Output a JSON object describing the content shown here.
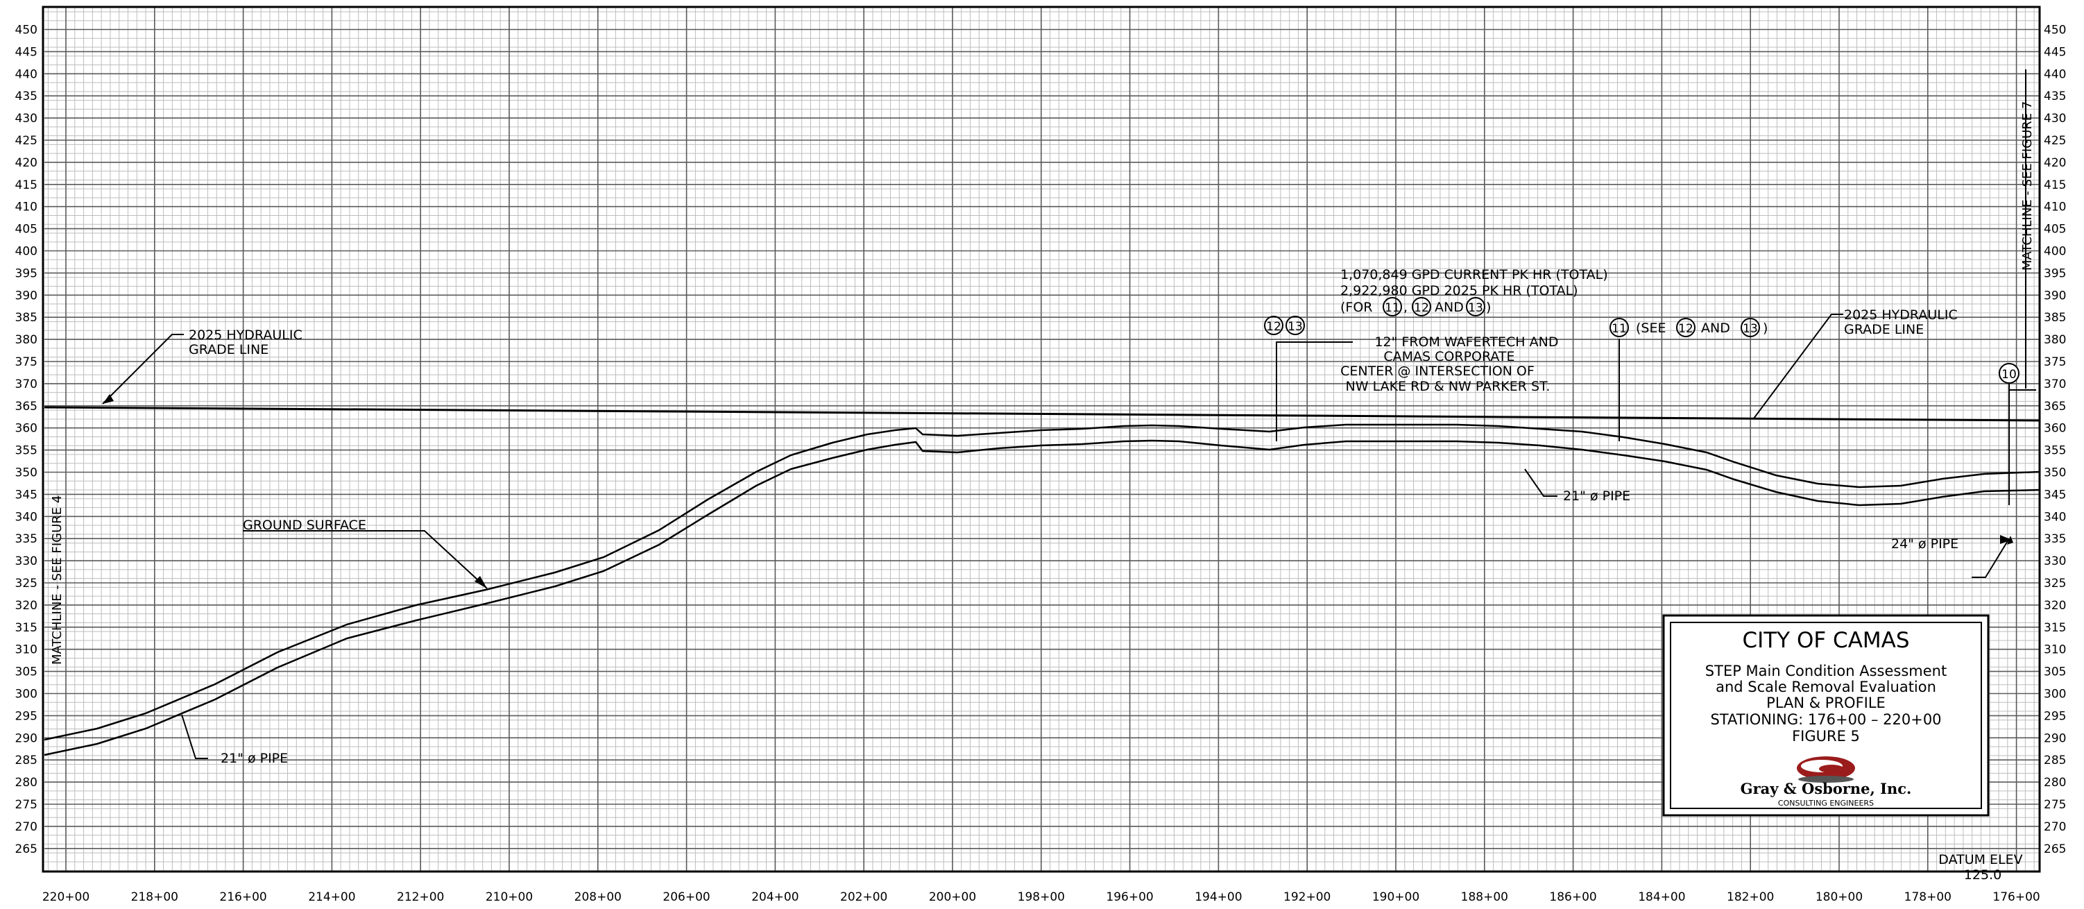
{
  "elevation_labels": [
    "450",
    "445",
    "440",
    "435",
    "430",
    "425",
    "420",
    "415",
    "410",
    "405",
    "400",
    "395",
    "390",
    "385",
    "380",
    "375",
    "370",
    "365",
    "360",
    "355",
    "350",
    "345",
    "340",
    "335",
    "330",
    "325",
    "320",
    "315",
    "310",
    "305",
    "300",
    "295",
    "290",
    "285",
    "280",
    "275",
    "270",
    "265"
  ],
  "station_labels": [
    "220+00",
    "218+00",
    "216+00",
    "214+00",
    "212+00",
    "210+00",
    "208+00",
    "206+00",
    "204+00",
    "202+00",
    "200+00",
    "198+00",
    "196+00",
    "194+00",
    "192+00",
    "190+00",
    "188+00",
    "186+00",
    "184+00",
    "182+00",
    "180+00",
    "178+00",
    "176+00"
  ],
  "matchline_left": "MATCHLINE - SEE FIGURE 4",
  "matchline_right": "MATCHLINE - SEE FIGURE 7",
  "annotations": {
    "hgl_left": [
      "2025 HYDRAULIC",
      "GRADE LINE"
    ],
    "hgl_right": [
      "2025 HYDRAULIC",
      "GRADE LINE"
    ],
    "ground_surface": "GROUND SURFACE",
    "pipe_left": "21\" ø PIPE",
    "pipe_mid": "21\" ø PIPE",
    "pipe_right": "24\" ø PIPE",
    "flow_lines": [
      "1,070,849 GPD CURRENT PK HR (TOTAL)",
      "2,922,980 GPD 2025 PK HR (TOTAL)"
    ],
    "flow_for_prefix": "(FOR",
    "flow_for_and": "AND",
    "flow_close": ")",
    "wafertech": [
      "12\" FROM WAFERTECH AND",
      "CAMAS CORPORATE",
      "CENTER @ INTERSECTION OF",
      "NW LAKE RD & NW PARKER ST."
    ],
    "see_prefix": "(SEE",
    "see_and": "AND",
    "see_close": ")",
    "datum_label": "DATUM ELEV",
    "datum_value": "125.0"
  },
  "callouts": {
    "n10": "10",
    "n11": "11",
    "n12": "12",
    "n13": "13"
  },
  "title_block": {
    "city": "CITY OF CAMAS",
    "lines": [
      "STEP Main Condition Assessment",
      "and Scale Removal Evaluation",
      "PLAN & PROFILE",
      "STATIONING: 176+00 – 220+00",
      "FIGURE 5"
    ],
    "company": "Gray & Osborne, Inc.",
    "company_sub": "CONSULTING ENGINEERS"
  },
  "colors": {
    "grid_minor": "#bdbdbd",
    "grid_major": "#5a5a5a",
    "line": "#000000",
    "logo_red": "#9b1c1c"
  }
}
